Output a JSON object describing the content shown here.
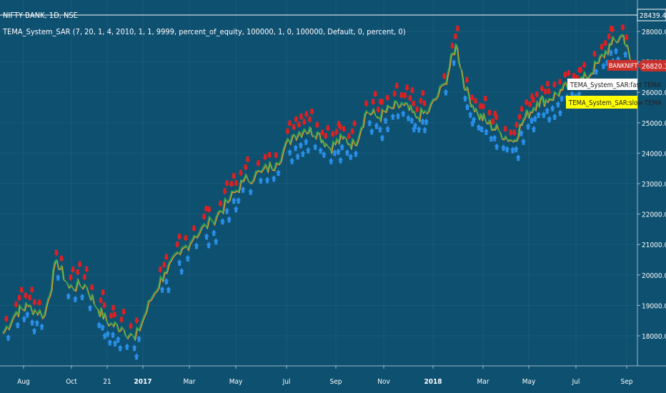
{
  "header": {
    "symbol_line": "NIFTY BANK, 1D, NSE",
    "indicator_line": "TEMA_System_SAR (7, 20, 1, 4, 2010, 1, 1, 9999, percent_of_equity, 100000, 1, 0, 100000, Default, 0, percent, 0)"
  },
  "price_scale": {
    "high_label": "28439.40",
    "ticks": [
      "28000.00",
      "27000.00",
      "26000.00",
      "25000.00",
      "24000.00",
      "23000.00",
      "22000.00",
      "21000.00",
      "20000.00",
      "19000.00",
      "18000.00"
    ],
    "last_symbol": "BANKNIFTY",
    "last_value": "26820.30"
  },
  "time_axis": [
    "Aug",
    "Oct",
    "21",
    "2017",
    "Mar",
    "May",
    "Jul",
    "Sep",
    "Nov",
    "2018",
    "Mar",
    "May",
    "Jul",
    "Sep"
  ],
  "legend": {
    "fast_label": "TEMA_System_SAR:fast TEMA",
    "slow_label": "TEMA_System_SAR:slow TEMA"
  },
  "colors": {
    "background": "#0e5070",
    "fast_line": "#2fa84f",
    "slow_line": "#f0a030",
    "sell_arrow": "#e02020",
    "buy_arrow": "#2a8fe8",
    "last_price_badge": "#c9302c",
    "legend_fast_bg": "#ffffff",
    "legend_slow_bg": "#ffff00"
  },
  "chart_data": {
    "type": "line",
    "title": "NIFTY BANK, 1D, NSE",
    "xlabel": "",
    "ylabel": "",
    "ylim": [
      17000,
      28700
    ],
    "x": [
      "2016-07-15",
      "2016-08-01",
      "2016-08-15",
      "2016-09-05",
      "2016-09-20",
      "2016-10-05",
      "2016-10-25",
      "2016-11-10",
      "2016-11-25",
      "2016-12-10",
      "2016-12-26",
      "2017-01-15",
      "2017-02-01",
      "2017-02-20",
      "2017-03-10",
      "2017-04-01",
      "2017-04-20",
      "2017-05-10",
      "2017-06-01",
      "2017-06-20",
      "2017-07-10",
      "2017-07-25",
      "2017-08-10",
      "2017-08-25",
      "2017-09-10",
      "2017-09-25",
      "2017-10-10",
      "2017-10-25",
      "2017-11-10",
      "2017-11-25",
      "2017-12-10",
      "2017-12-26",
      "2018-01-15",
      "2018-01-29",
      "2018-02-10",
      "2018-02-25",
      "2018-03-10",
      "2018-03-25",
      "2018-04-10",
      "2018-04-25",
      "2018-05-10",
      "2018-05-25",
      "2018-06-10",
      "2018-06-25",
      "2018-07-10",
      "2018-07-25",
      "2018-08-10",
      "2018-08-25",
      "2018-09-05"
    ],
    "series": [
      {
        "values": [
          18100,
          18800,
          19000,
          18700,
          20500,
          19600,
          19700,
          18900,
          18400,
          18300,
          17900,
          19200,
          20100,
          20700,
          21300,
          21800,
          22400,
          23100,
          23400,
          23700,
          24600,
          24800,
          24700,
          24200,
          24500,
          24300,
          25400,
          25200,
          25500,
          25600,
          25200,
          25400,
          26300,
          27600,
          26100,
          25300,
          25000,
          24700,
          24400,
          25200,
          25700,
          25800,
          26100,
          26300,
          26500,
          27000,
          27600,
          27900,
          26820
        ]
      }
    ],
    "markers": {
      "sell_arrows": "above local highs",
      "buy_arrows": "below local lows"
    }
  }
}
